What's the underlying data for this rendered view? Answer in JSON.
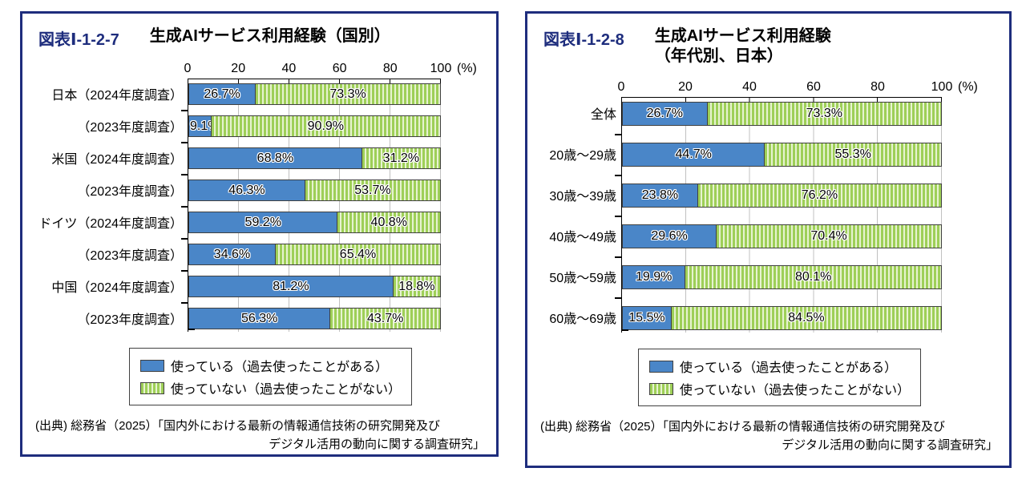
{
  "colors": {
    "panel_border": "#1e2d7d",
    "fig_label": "#1e2d7d",
    "bar_blue": "#4a86c8",
    "bar_border": "#404040",
    "stripe_green": "#9ecf58",
    "stripe_light": "#e7f3d1",
    "gridline": "#c0c0c0",
    "axis": "#000000",
    "text": "#000000"
  },
  "axis": {
    "unit": "(%)",
    "max": 100
  },
  "legend": {
    "used": "使っている（過去使ったことがある）",
    "not_used": "使っていない（過去使ったことがない）"
  },
  "source_lines": [
    "(出典) 総務省（2025）「国内外における最新の情報通信技術の研究開発及び",
    "デジタル活用の動向に関する調査研究」"
  ],
  "chart_data": [
    {
      "type": "bar",
      "orientation": "horizontal",
      "stacked": true,
      "fig_label": "図表Ⅰ-1-2-7",
      "title_lines": [
        "生成AIサービス利用経験（国別）"
      ],
      "xlim": [
        0,
        100
      ],
      "x_ticks": [
        0,
        20,
        40,
        60,
        80,
        100
      ],
      "unit": "%",
      "grid": true,
      "legend_position": "bottom",
      "categories": [
        "日本（2024年度調査）",
        "（2023年度調査）",
        "米国（2024年度調査）",
        "（2023年度調査）",
        "ドイツ（2024年度調査）",
        "（2023年度調査）",
        "中国（2024年度調査）",
        "（2023年度調査）"
      ],
      "series": [
        {
          "name": "使っている（過去使ったことがある）",
          "values": [
            26.7,
            9.1,
            68.8,
            46.3,
            59.2,
            34.6,
            81.2,
            56.3
          ]
        },
        {
          "name": "使っていない（過去使ったことがない）",
          "values": [
            73.3,
            90.9,
            31.2,
            53.7,
            40.8,
            65.4,
            18.8,
            43.7
          ]
        }
      ],
      "value_labels": [
        [
          "26.7%",
          "73.3%"
        ],
        [
          "9.1%",
          "90.9%"
        ],
        [
          "68.8%",
          "31.2%"
        ],
        [
          "46.3%",
          "53.7%"
        ],
        [
          "59.2%",
          "40.8%"
        ],
        [
          "34.6%",
          "65.4%"
        ],
        [
          "81.2%",
          "18.8%"
        ],
        [
          "56.3%",
          "43.7%"
        ]
      ]
    },
    {
      "type": "bar",
      "orientation": "horizontal",
      "stacked": true,
      "fig_label": "図表Ⅰ-1-2-8",
      "title_lines": [
        "生成AIサービス利用経験",
        "（年代別、日本）"
      ],
      "xlim": [
        0,
        100
      ],
      "x_ticks": [
        0,
        20,
        40,
        60,
        80,
        100
      ],
      "unit": "%",
      "grid": true,
      "legend_position": "bottom",
      "categories": [
        "全体",
        "20歳～29歳",
        "30歳～39歳",
        "40歳～49歳",
        "50歳～59歳",
        "60歳～69歳"
      ],
      "series": [
        {
          "name": "使っている（過去使ったことがある）",
          "values": [
            26.7,
            44.7,
            23.8,
            29.6,
            19.9,
            15.5
          ]
        },
        {
          "name": "使っていない（過去使ったことがない）",
          "values": [
            73.3,
            55.3,
            76.2,
            70.4,
            80.1,
            84.5
          ]
        }
      ],
      "value_labels": [
        [
          "26.7%",
          "73.3%"
        ],
        [
          "44.7%",
          "55.3%"
        ],
        [
          "23.8%",
          "76.2%"
        ],
        [
          "29.6%",
          "70.4%"
        ],
        [
          "19.9%",
          "80.1%"
        ],
        [
          "15.5%",
          "84.5%"
        ]
      ]
    }
  ]
}
